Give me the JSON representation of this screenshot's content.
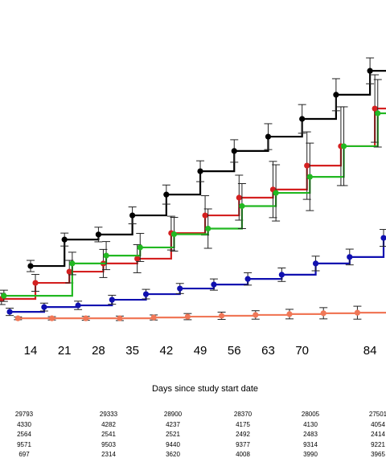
{
  "chart_data": {
    "type": "step",
    "x_label": "Days since study start date",
    "xlim": [
      7.7,
      87.3
    ],
    "xticks": [
      14,
      21,
      28,
      35,
      42,
      49,
      56,
      63,
      70,
      84
    ],
    "ylim": [
      0,
      100
    ],
    "grid": false,
    "series": [
      {
        "color": "#000000",
        "x": [
          14,
          21,
          28,
          35,
          42,
          49,
          56,
          63,
          70,
          77,
          84
        ],
        "values": [
          19.7,
          29.1,
          30.9,
          37.7,
          45.1,
          53.4,
          60.6,
          65.7,
          72,
          80.6,
          89.1
        ],
        "errors": [
          2,
          2.3,
          2.6,
          3,
          3.4,
          3.7,
          4,
          4.6,
          5.1,
          5.7,
          4.6
        ]
      },
      {
        "color": "#d42020",
        "x": [
          8,
          15,
          22,
          29,
          36,
          43,
          50,
          57,
          64,
          71,
          78,
          85
        ],
        "values": [
          8,
          13.7,
          17.7,
          20.6,
          22.3,
          31.4,
          37.7,
          44,
          46.9,
          55.4,
          62.3,
          75.7
        ],
        "errors": [
          2,
          3,
          4,
          5,
          5,
          6,
          7,
          8,
          10,
          12,
          14,
          12
        ]
      },
      {
        "color": "#22b822",
        "x": [
          8.5,
          22.6,
          29.6,
          36.6,
          43.6,
          50.6,
          57.6,
          64.6,
          71.6,
          78.6,
          85.6
        ],
        "values": [
          9.1,
          20.6,
          23.4,
          26.3,
          31,
          33,
          41,
          45.7,
          51.4,
          62.3,
          74
        ],
        "errors": [
          2,
          4,
          5,
          5,
          6,
          7,
          8,
          10,
          12,
          14,
          12
        ]
      },
      {
        "color": "#1010b0",
        "x": [
          9.7,
          16.8,
          23.8,
          30.8,
          37.8,
          44.8,
          51.8,
          58.8,
          65.8,
          72.8,
          79.8,
          86.8
        ],
        "values": [
          3.4,
          5.1,
          5.7,
          7.7,
          9.7,
          11.7,
          13.1,
          15.1,
          16.6,
          20.6,
          22.9,
          29.7
        ],
        "errors": [
          1.3,
          1.4,
          1.5,
          1.6,
          1.7,
          1.8,
          2,
          2.2,
          2.4,
          2.6,
          2.8,
          3
        ]
      },
      {
        "color": "#f07858",
        "x": [
          11.4,
          18.4,
          25.4,
          32.4,
          39.4,
          46.4,
          53.4,
          60.4,
          67.4,
          74.4,
          81.4
        ],
        "values": [
          1.1,
          1.1,
          1.1,
          1.1,
          1.4,
          1.7,
          2,
          2.3,
          2.6,
          2.9,
          3.1
        ],
        "errors": [
          0.5,
          0.6,
          0.7,
          0.8,
          0.9,
          1.1,
          1.3,
          1.5,
          1.7,
          2,
          2.3
        ]
      }
    ]
  },
  "risk_table": {
    "rows": [
      [
        29793,
        29333,
        28900,
        28370,
        28005,
        27501
      ],
      [
        4330,
        4282,
        4237,
        4175,
        4130,
        4054
      ],
      [
        2564,
        2541,
        2521,
        2492,
        2483,
        2414
      ],
      [
        9571,
        9503,
        9440,
        9377,
        9314,
        9221
      ],
      [
        697,
        2314,
        3620,
        4008,
        3990,
        3965
      ]
    ]
  }
}
